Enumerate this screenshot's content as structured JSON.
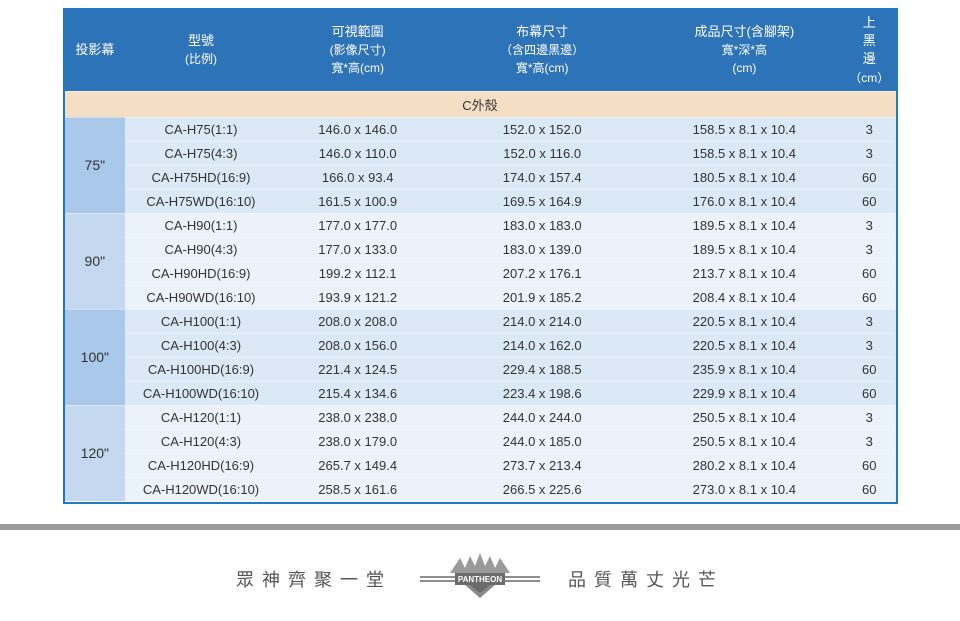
{
  "headers": {
    "col1": "投影幕",
    "col2_line1": "型號",
    "col2_line2": "(比例)",
    "col3_line1": "可視範圍",
    "col3_line2": "(影像尺寸)",
    "col3_line3": "寬*高(cm)",
    "col4_line1": "布幕尺寸",
    "col4_line2": "（含四邊黑邊）",
    "col4_line3": "寬*高(cm)",
    "col5_line1": "成品尺寸(含腳架)",
    "col5_line2": "寬*深*高",
    "col5_line3": "(cm)",
    "col6_line1": "上",
    "col6_line2": "黑",
    "col6_line3": "邊",
    "col6_line4": "（cm）"
  },
  "section": "C外殼",
  "groups": [
    {
      "size": "75\"",
      "shade": "a",
      "rows": [
        {
          "model": "CA-H75(1:1)",
          "visible": "146.0 x 146.0",
          "fabric": "152.0 x 152.0",
          "product": "158.5 x 8.1 x 10.4",
          "top": "3"
        },
        {
          "model": "CA-H75(4:3)",
          "visible": "146.0 x 110.0",
          "fabric": "152.0 x 116.0",
          "product": "158.5 x 8.1 x 10.4",
          "top": "3"
        },
        {
          "model": "CA-H75HD(16:9)",
          "visible": "166.0 x 93.4",
          "fabric": "174.0 x 157.4",
          "product": "180.5 x 8.1 x 10.4",
          "top": "60"
        },
        {
          "model": "CA-H75WD(16:10)",
          "visible": "161.5 x 100.9",
          "fabric": "169.5 x 164.9",
          "product": "176.0 x 8.1 x 10.4",
          "top": "60"
        }
      ]
    },
    {
      "size": "90\"",
      "shade": "b",
      "rows": [
        {
          "model": "CA-H90(1:1)",
          "visible": "177.0 x 177.0",
          "fabric": "183.0 x 183.0",
          "product": "189.5 x 8.1 x 10.4",
          "top": "3"
        },
        {
          "model": "CA-H90(4:3)",
          "visible": "177.0 x 133.0",
          "fabric": "183.0 x 139.0",
          "product": "189.5 x 8.1 x 10.4",
          "top": "3"
        },
        {
          "model": "CA-H90HD(16:9)",
          "visible": "199.2 x 112.1",
          "fabric": "207.2 x 176.1",
          "product": "213.7 x 8.1 x 10.4",
          "top": "60"
        },
        {
          "model": "CA-H90WD(16:10)",
          "visible": "193.9 x 121.2",
          "fabric": "201.9 x 185.2",
          "product": "208.4 x 8.1 x 10.4",
          "top": "60"
        }
      ]
    },
    {
      "size": "100\"",
      "shade": "a",
      "rows": [
        {
          "model": "CA-H100(1:1)",
          "visible": "208.0 x 208.0",
          "fabric": "214.0 x 214.0",
          "product": "220.5 x 8.1 x 10.4",
          "top": "3"
        },
        {
          "model": "CA-H100(4:3)",
          "visible": "208.0 x 156.0",
          "fabric": "214.0 x 162.0",
          "product": "220.5 x 8.1 x 10.4",
          "top": "3"
        },
        {
          "model": "CA-H100HD(16:9)",
          "visible": "221.4 x 124.5",
          "fabric": "229.4 x 188.5",
          "product": "235.9 x 8.1 x 10.4",
          "top": "60"
        },
        {
          "model": "CA-H100WD(16:10)",
          "visible": "215.4 x 134.6",
          "fabric": "223.4 x 198.6",
          "product": "229.9 x 8.1 x 10.4",
          "top": "60"
        }
      ]
    },
    {
      "size": "120\"",
      "shade": "b",
      "rows": [
        {
          "model": "CA-H120(1:1)",
          "visible": "238.0 x 238.0",
          "fabric": "244.0 x 244.0",
          "product": "250.5 x 8.1 x 10.4",
          "top": "3"
        },
        {
          "model": "CA-H120(4:3)",
          "visible": "238.0 x 179.0",
          "fabric": "244.0 x 185.0",
          "product": "250.5 x 8.1 x 10.4",
          "top": "3"
        },
        {
          "model": "CA-H120HD(16:9)",
          "visible": "265.7 x 149.4",
          "fabric": "273.7 x 213.4",
          "product": "280.2 x 8.1 x 10.4",
          "top": "60"
        },
        {
          "model": "CA-H120WD(16:10)",
          "visible": "258.5 x 161.6",
          "fabric": "266.5 x 225.6",
          "product": "273.0 x 8.1 x 10.4",
          "top": "60"
        }
      ]
    }
  ],
  "footer": {
    "left": "眾神齊聚一堂",
    "brand": "PANTHEON",
    "right": "品質萬丈光芒"
  }
}
